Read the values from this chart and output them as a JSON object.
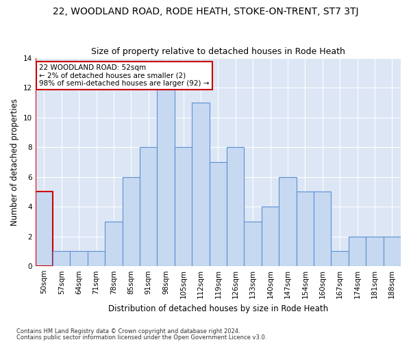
{
  "title": "22, WOODLAND ROAD, RODE HEATH, STOKE-ON-TRENT, ST7 3TJ",
  "subtitle": "Size of property relative to detached houses in Rode Heath",
  "xlabel": "Distribution of detached houses by size in Rode Heath",
  "ylabel": "Number of detached properties",
  "categories": [
    "50sqm",
    "57sqm",
    "64sqm",
    "71sqm",
    "78sqm",
    "85sqm",
    "91sqm",
    "98sqm",
    "105sqm",
    "112sqm",
    "119sqm",
    "126sqm",
    "133sqm",
    "140sqm",
    "147sqm",
    "154sqm",
    "160sqm",
    "167sqm",
    "174sqm",
    "181sqm",
    "188sqm"
  ],
  "values": [
    5,
    1,
    1,
    1,
    3,
    6,
    8,
    12,
    8,
    11,
    7,
    8,
    3,
    4,
    6,
    5,
    5,
    1,
    2,
    2,
    2
  ],
  "bar_color": "#c6d9f1",
  "bar_edge_color": "#5b8fd4",
  "annotation_text": "22 WOODLAND ROAD: 52sqm\n← 2% of detached houses are smaller (2)\n98% of semi-detached houses are larger (92) →",
  "annotation_box_color": "#ffffff",
  "annotation_box_edge_color": "#cc0000",
  "highlight_bar_edge_color": "#cc0000",
  "footer_line1": "Contains HM Land Registry data © Crown copyright and database right 2024.",
  "footer_line2": "Contains public sector information licensed under the Open Government Licence v3.0.",
  "ylim": [
    0,
    14
  ],
  "yticks": [
    0,
    2,
    4,
    6,
    8,
    10,
    12,
    14
  ],
  "fig_bg_color": "#ffffff",
  "plot_bg_color": "#dce6f5",
  "grid_color": "#ffffff",
  "title_fontsize": 10,
  "subtitle_fontsize": 9,
  "axis_label_fontsize": 8.5,
  "tick_fontsize": 7.5,
  "annotation_fontsize": 7.5,
  "footer_fontsize": 6
}
